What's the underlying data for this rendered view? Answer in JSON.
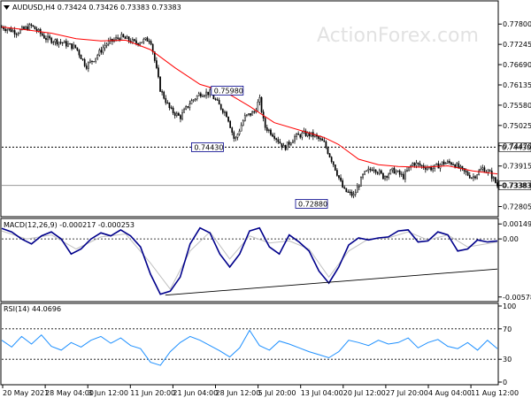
{
  "chart_data": [
    {
      "type": "candlestick",
      "title": "AUDUSD,H4  0.73424 0.73426 0.73383 0.73383",
      "watermark": "ActionForex.com",
      "ylim": [
        0.726,
        0.7812
      ],
      "y_ticks": [
        "0.77800",
        "0.77245",
        "0.76690",
        "0.76135",
        "0.75580",
        "0.75025",
        "0.74470",
        "0.73915",
        "0.73383",
        "0.72805"
      ],
      "y_tick_values": [
        0.778,
        0.77245,
        0.7669,
        0.76135,
        0.7558,
        0.75025,
        0.7447,
        0.73915,
        0.73383,
        0.72805
      ],
      "hlines": [
        {
          "value": 0.7443,
          "label": "0.74430",
          "style": "dotted"
        },
        {
          "value": 0.73383,
          "label": "0.73383",
          "style": "solid"
        }
      ],
      "annotations": [
        {
          "text": "0.75980",
          "x_frac": 0.455,
          "value": 0.7598
        },
        {
          "text": "0.74430",
          "x_frac": 0.415,
          "value": 0.7443
        },
        {
          "text": "0.72880",
          "x_frac": 0.625,
          "value": 0.7288
        }
      ],
      "price_path": [
        [
          0,
          0.7772
        ],
        [
          0.03,
          0.7758
        ],
        [
          0.06,
          0.7775
        ],
        [
          0.09,
          0.774
        ],
        [
          0.12,
          0.773
        ],
        [
          0.15,
          0.7715
        ],
        [
          0.17,
          0.7665
        ],
        [
          0.19,
          0.769
        ],
        [
          0.21,
          0.7725
        ],
        [
          0.24,
          0.7745
        ],
        [
          0.27,
          0.7728
        ],
        [
          0.3,
          0.774
        ],
        [
          0.32,
          0.76
        ],
        [
          0.34,
          0.7545
        ],
        [
          0.36,
          0.7525
        ],
        [
          0.38,
          0.7565
        ],
        [
          0.4,
          0.759
        ],
        [
          0.42,
          0.7592
        ],
        [
          0.44,
          0.7555
        ],
        [
          0.455,
          0.753
        ],
        [
          0.47,
          0.746
        ],
        [
          0.49,
          0.7525
        ],
        [
          0.51,
          0.754
        ],
        [
          0.52,
          0.7575
        ],
        [
          0.53,
          0.75
        ],
        [
          0.55,
          0.7475
        ],
        [
          0.57,
          0.744
        ],
        [
          0.59,
          0.747
        ],
        [
          0.61,
          0.748
        ],
        [
          0.63,
          0.7475
        ],
        [
          0.65,
          0.7455
        ],
        [
          0.67,
          0.7395
        ],
        [
          0.69,
          0.7325
        ],
        [
          0.71,
          0.731
        ],
        [
          0.73,
          0.7368
        ],
        [
          0.75,
          0.7388
        ],
        [
          0.77,
          0.7362
        ],
        [
          0.79,
          0.738
        ],
        [
          0.81,
          0.7362
        ],
        [
          0.83,
          0.74
        ],
        [
          0.85,
          0.739
        ],
        [
          0.87,
          0.7385
        ],
        [
          0.89,
          0.74
        ],
        [
          0.91,
          0.74
        ],
        [
          0.93,
          0.7378
        ],
        [
          0.95,
          0.736
        ],
        [
          0.97,
          0.7385
        ],
        [
          0.985,
          0.7372
        ],
        [
          1.0,
          0.7338
        ]
      ],
      "ma_path": [
        [
          0,
          0.7772
        ],
        [
          0.05,
          0.7764
        ],
        [
          0.1,
          0.7755
        ],
        [
          0.15,
          0.774
        ],
        [
          0.2,
          0.7734
        ],
        [
          0.25,
          0.7736
        ],
        [
          0.3,
          0.771
        ],
        [
          0.35,
          0.766
        ],
        [
          0.4,
          0.7615
        ],
        [
          0.45,
          0.7595
        ],
        [
          0.5,
          0.7555
        ],
        [
          0.55,
          0.751
        ],
        [
          0.6,
          0.749
        ],
        [
          0.65,
          0.747
        ],
        [
          0.68,
          0.745
        ],
        [
          0.72,
          0.741
        ],
        [
          0.76,
          0.7395
        ],
        [
          0.8,
          0.739
        ],
        [
          0.85,
          0.7388
        ],
        [
          0.9,
          0.7392
        ],
        [
          0.95,
          0.7378
        ],
        [
          1.0,
          0.737
        ]
      ]
    },
    {
      "type": "line",
      "title": "MACD(12,26,9) -0.000217 -0.000253",
      "ylim": [
        -0.00598,
        0.0016
      ],
      "y_ticks": [
        "0.001492",
        "0.00",
        "-0.005784"
      ],
      "y_tick_values": [
        0.001492,
        0.0,
        -0.005784
      ],
      "hline": 0.0,
      "series": [
        {
          "role": "macd",
          "values": [
            [
              0,
              0.00105
            ],
            [
              0.02,
              0.0007
            ],
            [
              0.04,
              0.0
            ],
            [
              0.06,
              -0.0005
            ],
            [
              0.08,
              0.0003
            ],
            [
              0.1,
              0.0007
            ],
            [
              0.12,
              0.0
            ],
            [
              0.14,
              -0.0015
            ],
            [
              0.16,
              -0.001
            ],
            [
              0.18,
              -0.0
            ],
            [
              0.2,
              0.0006
            ],
            [
              0.22,
              0.0003
            ],
            [
              0.24,
              0.0009
            ],
            [
              0.26,
              0.0003
            ],
            [
              0.28,
              -0.0008
            ],
            [
              0.3,
              -0.0035
            ],
            [
              0.32,
              -0.0055
            ],
            [
              0.34,
              -0.0052
            ],
            [
              0.36,
              -0.0038
            ],
            [
              0.38,
              -0.0005
            ],
            [
              0.4,
              0.0011
            ],
            [
              0.42,
              0.0006
            ],
            [
              0.44,
              -0.0015
            ],
            [
              0.46,
              -0.0028
            ],
            [
              0.48,
              -0.0015
            ],
            [
              0.5,
              0.0008
            ],
            [
              0.52,
              0.0011
            ],
            [
              0.54,
              -0.0008
            ],
            [
              0.56,
              -0.0015
            ],
            [
              0.58,
              0.0004
            ],
            [
              0.6,
              -0.0003
            ],
            [
              0.62,
              -0.0012
            ],
            [
              0.64,
              -0.0032
            ],
            [
              0.66,
              -0.0044
            ],
            [
              0.68,
              -0.0028
            ],
            [
              0.7,
              -0.0006
            ],
            [
              0.72,
              0.0001
            ],
            [
              0.74,
              -0.0001
            ],
            [
              0.76,
              0.0001
            ],
            [
              0.78,
              0.0002
            ],
            [
              0.8,
              0.0008
            ],
            [
              0.82,
              0.0009
            ],
            [
              0.84,
              -0.0003
            ],
            [
              0.86,
              -0.0002
            ],
            [
              0.88,
              0.0007
            ],
            [
              0.9,
              0.0004
            ],
            [
              0.92,
              -0.0012
            ],
            [
              0.94,
              -0.001
            ],
            [
              0.96,
              -0.0001
            ],
            [
              0.98,
              -0.0003
            ],
            [
              1.0,
              -0.0002
            ]
          ]
        },
        {
          "role": "signal",
          "values": [
            [
              0,
              0.0008
            ],
            [
              0.05,
              0.0
            ],
            [
              0.1,
              0.0004
            ],
            [
              0.15,
              -0.001
            ],
            [
              0.2,
              0.0002
            ],
            [
              0.25,
              0.0005
            ],
            [
              0.3,
              -0.0024
            ],
            [
              0.34,
              -0.005
            ],
            [
              0.38,
              -0.0012
            ],
            [
              0.42,
              0.0007
            ],
            [
              0.46,
              -0.002
            ],
            [
              0.5,
              0.0003
            ],
            [
              0.54,
              -0.0004
            ],
            [
              0.58,
              -0.0002
            ],
            [
              0.62,
              -0.001
            ],
            [
              0.66,
              -0.0038
            ],
            [
              0.7,
              -0.0012
            ],
            [
              0.74,
              0.0
            ],
            [
              0.78,
              0.0001
            ],
            [
              0.82,
              0.0007
            ],
            [
              0.86,
              -0.0001
            ],
            [
              0.9,
              0.0004
            ],
            [
              0.94,
              -0.0008
            ],
            [
              1.0,
              -0.0003
            ]
          ]
        }
      ],
      "trendline": [
        [
          0.33,
          -0.0056
        ],
        [
          1.0,
          -0.003
        ]
      ]
    },
    {
      "type": "line",
      "title": "RSI(14) 44.0696",
      "ylim": [
        0,
        100
      ],
      "y_ticks": [
        "100",
        "70",
        "30",
        "0"
      ],
      "y_tick_values": [
        100,
        70,
        30,
        0
      ],
      "levels": [
        70,
        30
      ],
      "series": [
        {
          "role": "rsi",
          "values": [
            [
              0,
              55
            ],
            [
              0.02,
              46
            ],
            [
              0.04,
              60
            ],
            [
              0.06,
              50
            ],
            [
              0.08,
              62
            ],
            [
              0.1,
              47
            ],
            [
              0.12,
              42
            ],
            [
              0.14,
              52
            ],
            [
              0.16,
              46
            ],
            [
              0.18,
              55
            ],
            [
              0.2,
              60
            ],
            [
              0.22,
              51
            ],
            [
              0.24,
              58
            ],
            [
              0.26,
              48
            ],
            [
              0.28,
              44
            ],
            [
              0.3,
              26
            ],
            [
              0.32,
              22
            ],
            [
              0.34,
              40
            ],
            [
              0.36,
              52
            ],
            [
              0.38,
              60
            ],
            [
              0.4,
              55
            ],
            [
              0.42,
              48
            ],
            [
              0.44,
              41
            ],
            [
              0.46,
              33
            ],
            [
              0.48,
              45
            ],
            [
              0.5,
              68
            ],
            [
              0.52,
              48
            ],
            [
              0.54,
              42
            ],
            [
              0.56,
              54
            ],
            [
              0.58,
              50
            ],
            [
              0.6,
              45
            ],
            [
              0.62,
              40
            ],
            [
              0.64,
              36
            ],
            [
              0.66,
              32
            ],
            [
              0.68,
              40
            ],
            [
              0.7,
              55
            ],
            [
              0.72,
              52
            ],
            [
              0.74,
              48
            ],
            [
              0.76,
              55
            ],
            [
              0.78,
              50
            ],
            [
              0.8,
              52
            ],
            [
              0.82,
              58
            ],
            [
              0.84,
              45
            ],
            [
              0.86,
              52
            ],
            [
              0.88,
              56
            ],
            [
              0.9,
              47
            ],
            [
              0.92,
              44
            ],
            [
              0.94,
              52
            ],
            [
              0.96,
              42
            ],
            [
              0.98,
              55
            ],
            [
              1.0,
              44
            ]
          ]
        }
      ]
    }
  ],
  "x_axis": {
    "labels": [
      "20 May 2021",
      "28 May 04:00",
      "3 Jun 12:00",
      "11 Jun 20:00",
      "21 Jun 04:00",
      "28 Jun 12:00",
      "5 Jul 20:00",
      "13 Jul 04:00",
      "20 Jul 12:00",
      "27 Jul 20:00",
      "4 Aug 04:00",
      "11 Aug 12:00"
    ]
  },
  "colors": {
    "candle": "#000000",
    "ma": "#ff0000",
    "macd": "#00008b",
    "signal": "#c0c0c0",
    "rsi": "#1e90ff",
    "grid_dotted": "#000000",
    "annotation_box": "#00008b"
  }
}
